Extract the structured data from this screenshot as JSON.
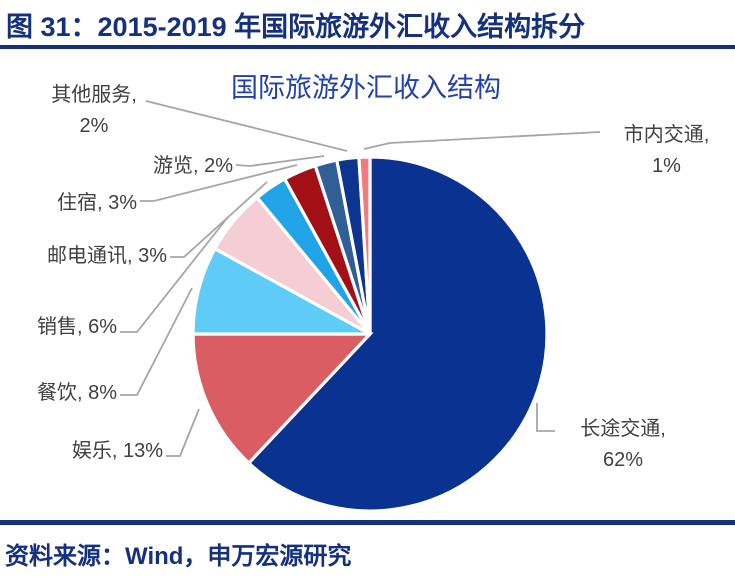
{
  "header": {
    "title": "图 31：2015-2019 年国际旅游外汇收入结构拆分",
    "accent_color": "#15317e"
  },
  "chart": {
    "title": "国际旅游外汇收入结构",
    "title_color": "#2342a8"
  },
  "chart_data": {
    "type": "pie",
    "title": "国际旅游外汇收入结构",
    "unit": "%",
    "start_angle_deg": 0,
    "direction": "clockwise",
    "legend_position": "none",
    "data_labels": "outside-with-leader-lines",
    "series": [
      {
        "name": "长途交通",
        "value": 62,
        "color": "#0a3391"
      },
      {
        "name": "娱乐",
        "value": 13,
        "color": "#d95d63"
      },
      {
        "name": "餐饮",
        "value": 8,
        "color": "#5fcbf7"
      },
      {
        "name": "销售",
        "value": 6,
        "color": "#f5cdd5"
      },
      {
        "name": "邮电通讯",
        "value": 3,
        "color": "#21a3e8"
      },
      {
        "name": "住宿",
        "value": 3,
        "color": "#a20f15"
      },
      {
        "name": "游览",
        "value": 2,
        "color": "#2f5f94"
      },
      {
        "name": "其他服务",
        "value": 2,
        "color": "#0d3590"
      },
      {
        "name": "市内交通",
        "value": 1,
        "color": "#f07c82"
      }
    ],
    "label_text_color": "#404040",
    "leader_line_color": "#a6a6a6",
    "slice_border_color": "#ffffff"
  },
  "footer": {
    "source": "资料来源：Wind，申万宏源研究"
  }
}
